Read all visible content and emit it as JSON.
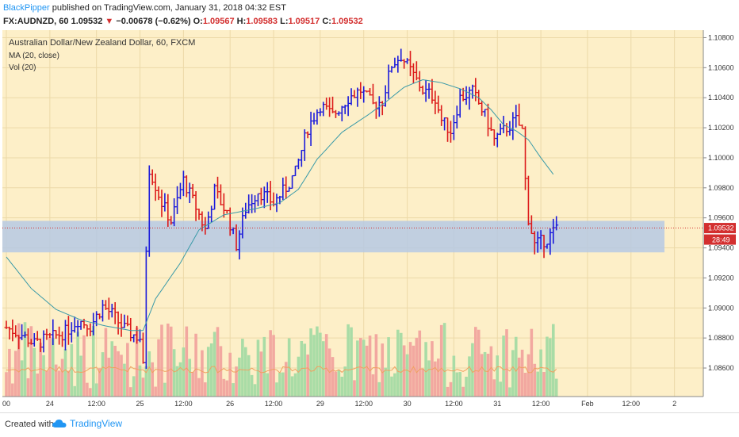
{
  "header": {
    "user": "BlackPipper",
    "published_text": " published on TradingView.com, January 31, 2018 04:32 EST",
    "symbol": "FX:AUDNZD, 60",
    "last": "1.09532",
    "change_arrow": "▼",
    "change": "−0.00678 (−0.62%)",
    "o_label": "O:",
    "o_value": "1.09567",
    "h_label": "H:",
    "h_value": "1.09583",
    "l_label": "L:",
    "l_value": "1.09517",
    "c_label": "C:",
    "c_value": "1.09532"
  },
  "legend": {
    "instrument": "Australian Dollar/New Zealand Dollar, 60, FXCM",
    "ma": "MA (20, close)",
    "vol": "Vol (20)"
  },
  "price_tag": "1.09532",
  "countdown_tag": "28:49",
  "footer": {
    "created": "Created with",
    "brand": "TradingView"
  },
  "colors": {
    "background": "#fdefc8",
    "bull": "#1a1adb",
    "bear": "#dc1a1a",
    "ma": "#3a9aa8",
    "vol_up": "#a9dca6",
    "vol_down": "#f2a8a0",
    "vol_ma": "#f0a060",
    "zone": "#b6c9e4",
    "price_line": "#d32f2f",
    "axis_text": "#333333"
  },
  "chart_data": {
    "type": "candlestick",
    "title": "Australian Dollar/New Zealand Dollar, 60, FXCM",
    "y_ticks": [
      1.108,
      1.106,
      1.104,
      1.102,
      1.1,
      1.098,
      1.096,
      1.094,
      1.092,
      1.09,
      1.088,
      1.086
    ],
    "y_tick_labels": [
      "1.10800",
      "1.10600",
      "1.10400",
      "1.10200",
      "1.10000",
      "1.09800",
      "1.09600",
      "1.09400",
      "1.09200",
      "1.09000",
      "1.08800",
      "1.08600"
    ],
    "ylim": [
      1.0841,
      1.1085
    ],
    "x_tick_labels": [
      "00",
      "24",
      "12:00",
      "25",
      "12:00",
      "26",
      "12:00",
      "29",
      "12:00",
      "30",
      "12:00",
      "31",
      "12:00",
      "Feb",
      "12:00",
      "2"
    ],
    "x_tick_bars": [
      0,
      14,
      29,
      43,
      57,
      72,
      86,
      101,
      115,
      129,
      144,
      158,
      172,
      187,
      201,
      215
    ],
    "bars_visible_range": [
      0,
      223
    ],
    "support_zone": [
      1.0937,
      1.0958
    ],
    "last_price": 1.09532,
    "close_path": [
      [
        0,
        1.0887
      ],
      [
        5,
        1.0882
      ],
      [
        9,
        1.0876
      ],
      [
        14,
        1.088
      ],
      [
        19,
        1.0884
      ],
      [
        23,
        1.0892
      ],
      [
        27,
        1.0888
      ],
      [
        31,
        1.0901
      ],
      [
        34,
        1.0896
      ],
      [
        37,
        1.0888
      ],
      [
        40,
        1.0883
      ],
      [
        43,
        1.088
      ],
      [
        44,
        1.086
      ],
      [
        45,
        1.094
      ],
      [
        46,
        1.0993
      ],
      [
        50,
        1.097
      ],
      [
        53,
        1.0958
      ],
      [
        57,
        1.0985
      ],
      [
        61,
        1.0967
      ],
      [
        64,
        1.0952
      ],
      [
        67,
        1.0978
      ],
      [
        71,
        1.0963
      ],
      [
        74,
        1.0942
      ],
      [
        77,
        1.0966
      ],
      [
        81,
        1.0978
      ],
      [
        86,
        1.097
      ],
      [
        90,
        1.098
      ],
      [
        93,
        1.099
      ],
      [
        97,
        1.102
      ],
      [
        101,
        1.1035
      ],
      [
        105,
        1.1028
      ],
      [
        110,
        1.104
      ],
      [
        114,
        1.1045
      ],
      [
        118,
        1.1035
      ],
      [
        121,
        1.1038
      ],
      [
        124,
        1.1062
      ],
      [
        127,
        1.1068
      ],
      [
        130,
        1.1058
      ],
      [
        134,
        1.1045
      ],
      [
        138,
        1.104
      ],
      [
        140,
        1.1025
      ],
      [
        143,
        1.1018
      ],
      [
        146,
        1.104
      ],
      [
        150,
        1.1044
      ],
      [
        154,
        1.1028
      ],
      [
        157,
        1.1012
      ],
      [
        161,
        1.102
      ],
      [
        164,
        1.1025
      ],
      [
        166,
        1.1018
      ],
      [
        167,
        1.0985
      ],
      [
        168,
        1.096
      ],
      [
        170,
        1.0942
      ],
      [
        174,
        1.0946
      ],
      [
        177,
        1.0953
      ]
    ],
    "ma_path": [
      [
        0,
        1.0934
      ],
      [
        8,
        1.0913
      ],
      [
        16,
        1.0899
      ],
      [
        24,
        1.0892
      ],
      [
        32,
        1.0888
      ],
      [
        40,
        1.0885
      ],
      [
        44,
        1.0885
      ],
      [
        48,
        1.0906
      ],
      [
        56,
        1.093
      ],
      [
        62,
        1.0952
      ],
      [
        70,
        1.0962
      ],
      [
        80,
        1.0966
      ],
      [
        88,
        1.097
      ],
      [
        94,
        1.0979
      ],
      [
        100,
        1.0999
      ],
      [
        108,
        1.1017
      ],
      [
        116,
        1.1028
      ],
      [
        122,
        1.1037
      ],
      [
        128,
        1.1047
      ],
      [
        134,
        1.1052
      ],
      [
        140,
        1.105
      ],
      [
        146,
        1.1046
      ],
      [
        152,
        1.104
      ],
      [
        156,
        1.1032
      ],
      [
        160,
        1.1022
      ],
      [
        164,
        1.1018
      ],
      [
        168,
        1.1012
      ],
      [
        172,
        1.1
      ],
      [
        176,
        1.0989
      ]
    ],
    "volume": {
      "ma_level": 0.45,
      "max_height_fraction": 1.0
    }
  }
}
